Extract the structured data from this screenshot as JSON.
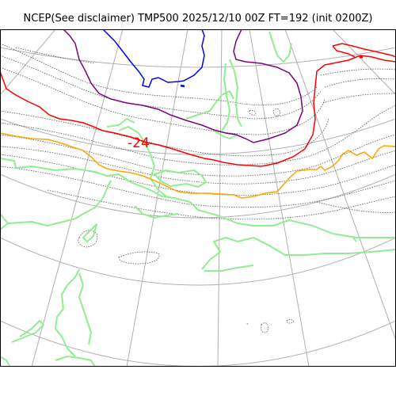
{
  "title": "NCEP(See disclaimer) TMP500 2025/12/10 00Z FT=192 (init 0200Z)",
  "map": {
    "contour_label": "-24",
    "colors": {
      "background": "#ffffff",
      "frame": "#000000",
      "graticule": "#b0b0b0",
      "coastline": "#90ee90",
      "dotted_contour": "#555555",
      "isotherm_blue": "#0000ff",
      "isotherm_purple": "#800080",
      "isotherm_red": "#ff0000",
      "isotherm_orange": "#ffa500",
      "label": "#ff0000"
    }
  }
}
